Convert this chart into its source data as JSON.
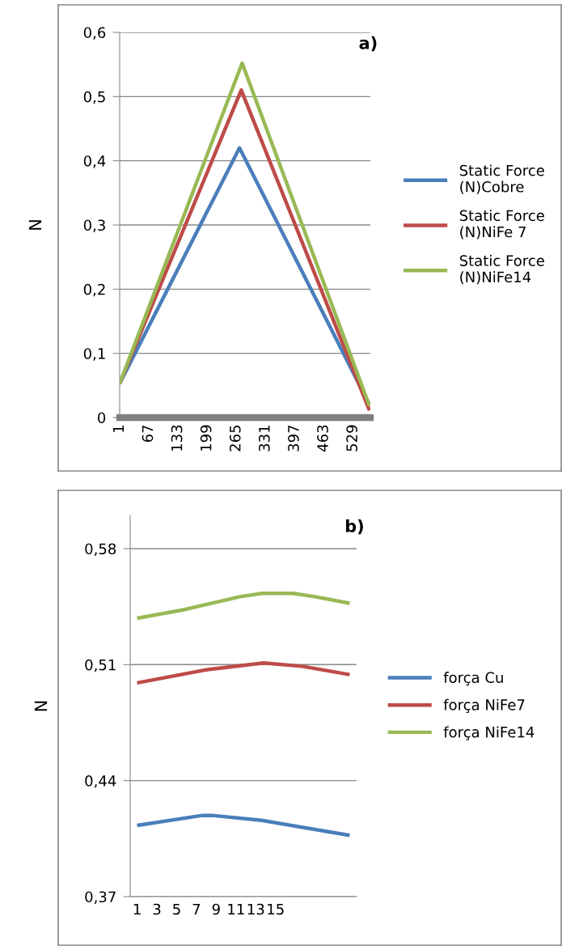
{
  "chart_data": [
    {
      "type": "line",
      "ylabel": "N",
      "annotations": [
        "a)"
      ],
      "xlim": [
        1,
        568
      ],
      "xticks": [
        1,
        67,
        133,
        199,
        265,
        331,
        397,
        463,
        529
      ],
      "ylim": [
        0,
        0.6
      ],
      "yticks": [
        0,
        {
          "value": 0.1,
          "label": "0,1"
        },
        {
          "value": 0.2,
          "label": "0,2"
        },
        {
          "value": 0.3,
          "label": "0,3"
        },
        {
          "value": 0.4,
          "label": "0,4"
        },
        {
          "value": 0.5,
          "label": "0,5"
        },
        {
          "value": 0.6,
          "label": "0,6"
        }
      ],
      "grid": "y",
      "legend": "right",
      "marker": "none",
      "line_style": "solid",
      "series": [
        {
          "name": "Static Force (N)Cobre",
          "color": "#4a7ebb",
          "x": [
            1,
            272,
            566
          ],
          "values": [
            0.053,
            0.42,
            0.02
          ]
        },
        {
          "name": "Static Force (N)NiFe 7",
          "color": "#be4b48",
          "x": [
            1,
            276,
            566
          ],
          "values": [
            0.053,
            0.51,
            0.011
          ]
        },
        {
          "name": "Static Force (N)NiFe14",
          "color": "#98b954",
          "x": [
            1,
            278,
            566
          ],
          "values": [
            0.053,
            0.552,
            0.018
          ]
        }
      ]
    },
    {
      "type": "line",
      "ylabel": "N",
      "annotations": [
        "b)"
      ],
      "xlim": [
        0.3,
        23.2
      ],
      "xticks": [
        1,
        3,
        5,
        7,
        9,
        11,
        13,
        15
      ],
      "ylim": [
        0.37,
        0.6
      ],
      "yticks": [
        {
          "value": 0.37,
          "label": "0,37"
        },
        {
          "value": 0.44,
          "label": "0,44"
        },
        {
          "value": 0.51,
          "label": "0,51"
        },
        {
          "value": 0.58,
          "label": "0,58"
        }
      ],
      "grid": "y",
      "legend": "right",
      "marker": "none",
      "line_style": "solid",
      "series": [
        {
          "name": "força Cu",
          "color": "#4a7ebb",
          "x": [
            1,
            7.6,
            8.6,
            13.6,
            22.5
          ],
          "values": [
            0.413,
            0.419,
            0.419,
            0.416,
            0.407
          ]
        },
        {
          "name": "força NiFe7",
          "color": "#be4b48",
          "x": [
            1,
            8.1,
            13.8,
            17.7,
            22.5
          ],
          "values": [
            0.499,
            0.507,
            0.511,
            0.509,
            0.504
          ]
        },
        {
          "name": "força NiFe14",
          "color": "#98b954",
          "x": [
            1,
            5.6,
            11.4,
            13.6,
            15.2,
            16.8,
            19.0,
            22.5
          ],
          "values": [
            0.538,
            0.543,
            0.551,
            0.553,
            0.553,
            0.553,
            0.551,
            0.547
          ]
        }
      ]
    }
  ]
}
